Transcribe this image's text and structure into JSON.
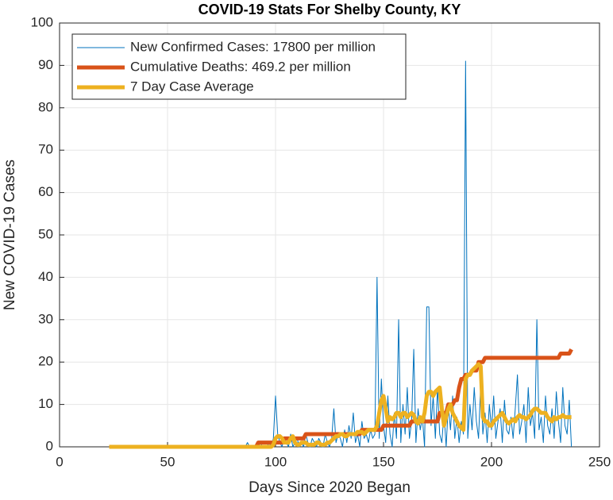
{
  "chart_data": {
    "type": "line",
    "title": "COVID-19 Stats For Shelby County, KY",
    "xlabel": "Days Since 2020 Began",
    "ylabel": "New COVID-19 Cases",
    "xlim": [
      0,
      250
    ],
    "xticks": [
      0,
      50,
      100,
      150,
      200,
      250
    ],
    "ylim": [
      0,
      100
    ],
    "yticks": [
      0,
      10,
      20,
      30,
      40,
      50,
      60,
      70,
      80,
      90,
      100
    ],
    "grid": true,
    "legend": "northwest",
    "x": [
      23,
      85,
      86,
      87,
      88,
      89,
      90,
      91,
      92,
      93,
      94,
      95,
      96,
      97,
      98,
      99,
      100,
      101,
      102,
      103,
      104,
      105,
      106,
      107,
      108,
      109,
      110,
      111,
      112,
      113,
      114,
      115,
      116,
      117,
      118,
      119,
      120,
      121,
      122,
      123,
      124,
      125,
      126,
      127,
      128,
      129,
      130,
      131,
      132,
      133,
      134,
      135,
      136,
      137,
      138,
      139,
      140,
      141,
      142,
      143,
      144,
      145,
      146,
      147,
      148,
      149,
      150,
      151,
      152,
      153,
      154,
      155,
      156,
      157,
      158,
      159,
      160,
      161,
      162,
      163,
      164,
      165,
      166,
      167,
      168,
      169,
      170,
      171,
      172,
      173,
      174,
      175,
      176,
      177,
      178,
      179,
      180,
      181,
      182,
      183,
      184,
      185,
      186,
      187,
      188,
      189,
      190,
      191,
      192,
      193,
      194,
      195,
      196,
      197,
      198,
      199,
      200,
      201,
      202,
      203,
      204,
      205,
      206,
      207,
      208,
      209,
      210,
      211,
      212,
      213,
      214,
      215,
      216,
      217,
      218,
      219,
      220,
      221,
      222,
      223,
      224,
      225,
      226,
      227,
      228,
      229,
      230,
      231,
      232,
      233,
      234,
      235,
      236,
      237
    ],
    "series": [
      {
        "name": "New Confirmed Cases: 17800 per million",
        "color": "#0072BD",
        "width": 1,
        "values": [
          0,
          0,
          0,
          1,
          0,
          0,
          0,
          0,
          0,
          1,
          0,
          0,
          0,
          1,
          0,
          2,
          12,
          3,
          1,
          0,
          2,
          1,
          0,
          3,
          0,
          1,
          2,
          0,
          1,
          0,
          3,
          1,
          0,
          2,
          1,
          0,
          2,
          1,
          0,
          3,
          1,
          0,
          2,
          9,
          1,
          3,
          2,
          0,
          4,
          1,
          5,
          2,
          8,
          1,
          3,
          0,
          6,
          2,
          3,
          1,
          4,
          2,
          3,
          40,
          2,
          16,
          5,
          1,
          12,
          3,
          0,
          8,
          2,
          30,
          1,
          10,
          3,
          14,
          2,
          6,
          23,
          1,
          9,
          4,
          7,
          0,
          33,
          33,
          5,
          12,
          2,
          14,
          3,
          1,
          8,
          0,
          10,
          4,
          12,
          2,
          7,
          1,
          6,
          3,
          91,
          2,
          10,
          4,
          14,
          6,
          2,
          15,
          3,
          8,
          1,
          10,
          4,
          12,
          2,
          6,
          9,
          1,
          11,
          4,
          3,
          7,
          2,
          9,
          17,
          3,
          6,
          10,
          1,
          14,
          5,
          8,
          2,
          30,
          4,
          7,
          1,
          12,
          5,
          3,
          9,
          2,
          13,
          6,
          1,
          14,
          5,
          3,
          11,
          0
        ]
      },
      {
        "name": "Cumulative Deaths: 469.2 per million",
        "color": "#D95319",
        "width": 5,
        "values": [
          0,
          0,
          0,
          0,
          0,
          0,
          0,
          0,
          1,
          1,
          1,
          1,
          1,
          1,
          1,
          1,
          1,
          1,
          1,
          1,
          2,
          2,
          2,
          2,
          2,
          2,
          2,
          2,
          2,
          2,
          3,
          3,
          3,
          3,
          3,
          3,
          3,
          3,
          3,
          3,
          3,
          3,
          3,
          3,
          3,
          3,
          3,
          3,
          3,
          3,
          3,
          3,
          3,
          3,
          3,
          3,
          4,
          4,
          4,
          4,
          4,
          4,
          4,
          4,
          4,
          4,
          5,
          5,
          5,
          5,
          5,
          5,
          5,
          5,
          5,
          5,
          5,
          5,
          5,
          6,
          6,
          6,
          6,
          6,
          6,
          6,
          6,
          6,
          6,
          6,
          6,
          6,
          8,
          8,
          8,
          8,
          10,
          10,
          10,
          11,
          11,
          14,
          16,
          16,
          17,
          17,
          17,
          18,
          18,
          18,
          20,
          20,
          20,
          21,
          21,
          21,
          21,
          21,
          21,
          21,
          21,
          21,
          21,
          21,
          21,
          21,
          21,
          21,
          21,
          21,
          21,
          21,
          21,
          21,
          21,
          21,
          21,
          21,
          21,
          21,
          21,
          21,
          21,
          21,
          21,
          21,
          21,
          21,
          22,
          22,
          22,
          22,
          22,
          23
        ]
      },
      {
        "name": "7 Day Case Average",
        "color": "#EDB120",
        "width": 5,
        "values": [
          0,
          0,
          0,
          0,
          0,
          0,
          0,
          0,
          0,
          0,
          0,
          0,
          0,
          0,
          0,
          0.5,
          2,
          2.5,
          2.5,
          2,
          1,
          1,
          1,
          2,
          2.5,
          1,
          0.5,
          0.5,
          1,
          1,
          1,
          0.5,
          0.5,
          0.5,
          0.5,
          1,
          1,
          0.5,
          0.5,
          0.5,
          1,
          1,
          1.5,
          2,
          2.5,
          2.5,
          3,
          3,
          2.5,
          2.5,
          3,
          3,
          3,
          3,
          3.5,
          3.5,
          3.5,
          3,
          3.5,
          4,
          4,
          4,
          4,
          5,
          8,
          11,
          12,
          9,
          6,
          7,
          6.5,
          7,
          8,
          8,
          7,
          8,
          8,
          7,
          7.5,
          8,
          7.5,
          6,
          5.5,
          7,
          6,
          8,
          12,
          13,
          13,
          12,
          13,
          13.5,
          14,
          9,
          5,
          7,
          9,
          10,
          8,
          7,
          6,
          5,
          4.5,
          4,
          16,
          17,
          17,
          18,
          18.5,
          19,
          19.5,
          19,
          7,
          6,
          6,
          5,
          5,
          6,
          6.5,
          7,
          7.5,
          8,
          7,
          6,
          5.5,
          6,
          6.5,
          6,
          7,
          7.5,
          7,
          7,
          6.5,
          7,
          7.5,
          8.5,
          9,
          9,
          8.5,
          8,
          8,
          8,
          7,
          6.5,
          6,
          7,
          6.5,
          7,
          7,
          7.5,
          7,
          7,
          7,
          7
        ]
      }
    ]
  }
}
